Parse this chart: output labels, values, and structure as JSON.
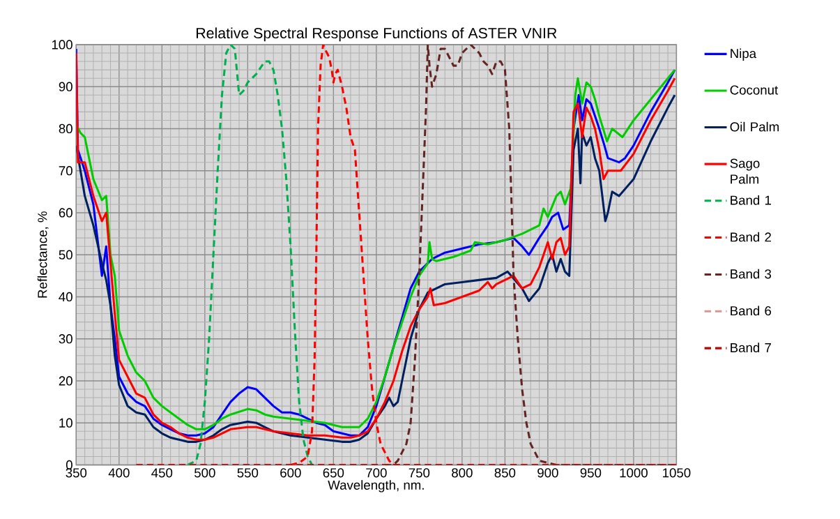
{
  "chart_data": {
    "type": "line",
    "title": "Relative Spectral Response Functions of ASTER VNIR",
    "xlabel": "Wavelength, nm.",
    "ylabel": "Reflectance, %",
    "xlim": [
      350,
      1050
    ],
    "ylim": [
      0,
      100
    ],
    "xticks": [
      350,
      400,
      450,
      500,
      550,
      600,
      650,
      700,
      750,
      800,
      850,
      900,
      950,
      1000,
      1050
    ],
    "yticks": [
      0,
      10,
      20,
      30,
      40,
      50,
      60,
      70,
      80,
      90,
      100
    ],
    "grid": true,
    "legend": "right",
    "marker": "none",
    "line_style": "solid",
    "series": [
      {
        "name": "Nipa",
        "color": "#0000ff",
        "x": [
          350,
          352,
          360,
          370,
          380,
          385,
          390,
          395,
          400,
          410,
          420,
          430,
          440,
          450,
          460,
          470,
          480,
          490,
          500,
          510,
          520,
          530,
          540,
          550,
          560,
          570,
          580,
          590,
          600,
          610,
          620,
          630,
          640,
          650,
          660,
          670,
          680,
          690,
          700,
          710,
          720,
          730,
          740,
          750,
          760,
          765,
          770,
          780,
          800,
          820,
          840,
          860,
          870,
          878,
          890,
          900,
          905,
          912,
          918,
          925,
          930,
          936,
          940,
          945,
          950,
          960,
          966,
          970,
          983,
          990,
          1000,
          1020,
          1040,
          1048
        ],
        "values": [
          99,
          75,
          70,
          62,
          45,
          52,
          38,
          30,
          21,
          17,
          15,
          14,
          11,
          9.5,
          8.5,
          7.5,
          7,
          7,
          7.5,
          9,
          12,
          15,
          17,
          18.5,
          18,
          16,
          14,
          12.5,
          12.5,
          12,
          11,
          10,
          9.5,
          8,
          7.5,
          7,
          7,
          9,
          14,
          21,
          28,
          35,
          42,
          46,
          48,
          49,
          49.5,
          50.5,
          51.5,
          52.5,
          53,
          54,
          52,
          50,
          54,
          57,
          59,
          60,
          56,
          57,
          80,
          88,
          82,
          87,
          86,
          80,
          76,
          73,
          72,
          73,
          76,
          84,
          91,
          94
        ]
      },
      {
        "name": "Coconut",
        "color": "#00cc00",
        "x": [
          350,
          355,
          360,
          370,
          380,
          385,
          390,
          395,
          400,
          410,
          420,
          430,
          440,
          450,
          460,
          470,
          480,
          490,
          500,
          510,
          520,
          530,
          550,
          560,
          570,
          580,
          600,
          620,
          640,
          660,
          670,
          680,
          690,
          700,
          710,
          720,
          730,
          740,
          750,
          760,
          762,
          765,
          770,
          790,
          810,
          815,
          830,
          850,
          870,
          880,
          890,
          895,
          900,
          910,
          915,
          920,
          927,
          932,
          935,
          940,
          945,
          950,
          955,
          960,
          969,
          975,
          987,
          1000,
          1020,
          1040,
          1048
        ],
        "values": [
          81,
          79,
          78,
          68,
          63,
          64,
          50,
          45,
          32,
          26,
          22,
          20,
          16,
          14,
          12.5,
          11,
          9.5,
          8.5,
          8.5,
          9.5,
          11,
          12,
          13.3,
          13,
          12,
          11.5,
          11,
          10.5,
          10,
          9,
          9,
          9,
          11,
          15,
          21,
          28,
          34,
          40,
          45,
          48,
          53,
          49,
          48.5,
          49.5,
          51,
          53,
          52.5,
          53.5,
          55,
          56,
          57,
          61,
          59,
          64,
          65,
          62,
          66,
          88,
          92,
          86,
          91,
          90,
          87,
          83,
          77,
          80,
          78,
          82,
          87,
          92,
          94
        ]
      },
      {
        "name": "Oil Palm",
        "color": "#002060",
        "x": [
          350,
          355,
          360,
          370,
          380,
          385,
          390,
          395,
          400,
          410,
          420,
          430,
          440,
          450,
          460,
          470,
          480,
          490,
          500,
          510,
          520,
          530,
          550,
          560,
          570,
          580,
          600,
          620,
          640,
          660,
          670,
          680,
          690,
          700,
          710,
          715,
          720,
          725,
          730,
          740,
          750,
          760,
          770,
          780,
          800,
          820,
          840,
          853,
          870,
          878,
          890,
          900,
          905,
          910,
          915,
          920,
          925,
          930,
          935,
          938,
          940,
          945,
          950,
          955,
          960,
          967,
          970,
          975,
          983,
          1000,
          1020,
          1040,
          1048
        ],
        "values": [
          76,
          70,
          64,
          57,
          48,
          44,
          38,
          26,
          19,
          14,
          12.5,
          12,
          9,
          7.5,
          6.5,
          6,
          5.5,
          5.5,
          6,
          7,
          8.5,
          9.5,
          10.3,
          10,
          9,
          8,
          7,
          6.5,
          6,
          5.5,
          5.5,
          6,
          7.5,
          11,
          14,
          16,
          14,
          15,
          20,
          30,
          37,
          41,
          42,
          43,
          43.5,
          44,
          44.5,
          46,
          42,
          39,
          42,
          48,
          50,
          46,
          49,
          46,
          45,
          75,
          80,
          67,
          79,
          76,
          78,
          73,
          70,
          58,
          60,
          65,
          64,
          68,
          77,
          85,
          88
        ]
      },
      {
        "name": "Sago Palm",
        "color": "#ff0000",
        "x": [
          350,
          352,
          360,
          370,
          380,
          385,
          390,
          395,
          400,
          410,
          420,
          430,
          440,
          450,
          460,
          470,
          480,
          490,
          500,
          510,
          520,
          530,
          550,
          560,
          570,
          580,
          600,
          620,
          640,
          660,
          670,
          680,
          690,
          700,
          710,
          720,
          730,
          740,
          750,
          760,
          763,
          767,
          780,
          800,
          820,
          830,
          835,
          840,
          850,
          860,
          870,
          880,
          890,
          900,
          905,
          910,
          915,
          920,
          925,
          930,
          935,
          940,
          945,
          950,
          955,
          960,
          965,
          970,
          985,
          1000,
          1020,
          1040,
          1048
        ],
        "values": [
          98,
          72,
          72,
          64,
          58,
          60,
          48,
          36,
          25,
          21,
          17,
          16,
          12,
          10,
          9,
          7.5,
          6.5,
          6,
          6,
          6.5,
          7.5,
          8.5,
          9,
          9,
          8.5,
          8,
          7.5,
          7,
          7,
          6.5,
          6.5,
          7,
          8,
          11,
          15,
          20,
          27,
          33,
          37,
          40,
          42,
          38,
          38.5,
          40,
          41.5,
          43.5,
          42,
          43,
          44,
          45,
          42,
          43,
          47,
          53,
          49,
          53,
          54,
          50,
          52,
          84,
          86,
          78,
          85,
          83,
          80,
          75,
          68,
          70,
          70,
          74,
          82,
          89,
          92
        ]
      },
      {
        "name": "Band 1",
        "color": "#00b050",
        "line_style": "dashed",
        "x": [
          480,
          490,
          495,
          500,
          505,
          510,
          515,
          520,
          525,
          530,
          535,
          540,
          545,
          550,
          560,
          570,
          575,
          580,
          585,
          590,
          595,
          600,
          605,
          610,
          615,
          620,
          625,
          630
        ],
        "values": [
          0,
          1,
          5,
          15,
          30,
          50,
          70,
          88,
          98,
          100,
          99,
          88,
          89,
          91,
          93,
          96,
          96,
          94,
          88,
          80,
          68,
          52,
          32,
          15,
          6,
          2,
          0,
          0
        ]
      },
      {
        "name": "Band 2",
        "color": "#ff0000",
        "line_style": "dashed",
        "x": [
          600,
          610,
          620,
          625,
          628,
          630,
          632,
          635,
          638,
          640,
          645,
          648,
          650,
          652,
          655,
          660,
          665,
          670,
          675,
          680,
          685,
          690,
          695,
          700,
          705,
          710,
          715,
          720,
          730
        ],
        "values": [
          0,
          0.5,
          2,
          8,
          25,
          50,
          80,
          95,
          100,
          99,
          97,
          94,
          91,
          93,
          94,
          90,
          85,
          78,
          75,
          60,
          45,
          30,
          18,
          10,
          5,
          3,
          1,
          0,
          0
        ]
      },
      {
        "name": "Band 3",
        "color": "#632523",
        "line_style": "dashed",
        "x": [
          710,
          720,
          725,
          730,
          735,
          740,
          745,
          750,
          755,
          758,
          760,
          762,
          765,
          770,
          775,
          780,
          785,
          790,
          795,
          800,
          810,
          820,
          825,
          830,
          835,
          840,
          845,
          850,
          855,
          858,
          860,
          865,
          870,
          875,
          880,
          885,
          890,
          900,
          910,
          1050
        ],
        "values": [
          0,
          0,
          1,
          3,
          5,
          10,
          25,
          45,
          70,
          85,
          100,
          95,
          90,
          93,
          99,
          99,
          97,
          95,
          95,
          98,
          100,
          98,
          96,
          95,
          93,
          96,
          96,
          94,
          80,
          60,
          45,
          30,
          18,
          10,
          5,
          3,
          1,
          0.5,
          0,
          0
        ]
      },
      {
        "name": "Band 6",
        "color": "#d99694",
        "line_style": "dashed"
      },
      {
        "name": "Band 7",
        "color": "#c00000",
        "line_style": "dashed",
        "x": [
          420,
          1050
        ],
        "values": [
          0,
          0
        ]
      }
    ]
  }
}
